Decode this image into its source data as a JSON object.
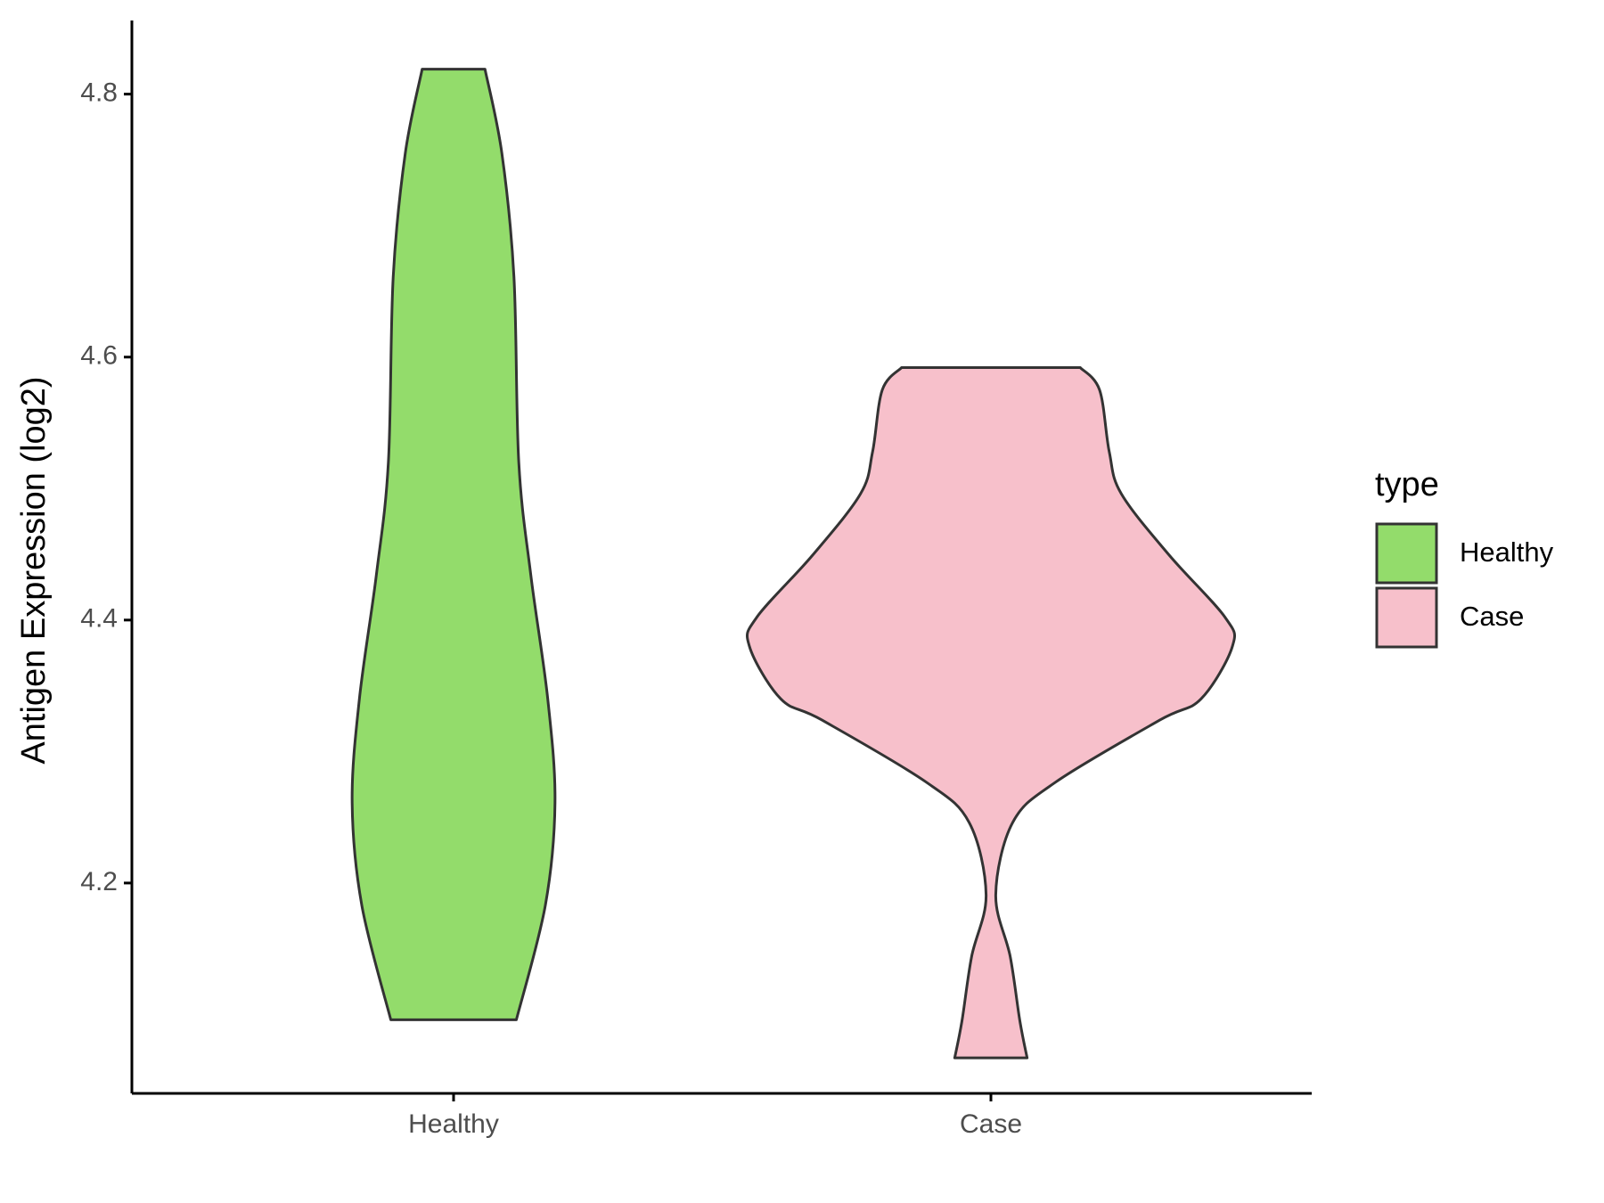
{
  "chart_data": {
    "type": "violin",
    "y_label": "Antigen Expression (log2)",
    "categories": [
      "Healthy",
      "Case"
    ],
    "legend_title": "type",
    "ylim": [
      4.04,
      4.856
    ],
    "yticks": [
      4.2,
      4.4,
      4.6,
      4.8
    ],
    "series": [
      {
        "name": "Healthy",
        "color": "#93dc6b",
        "y": [
          4.819,
          4.755,
          4.661,
          4.52,
          4.434,
          4.34,
          4.261,
          4.183,
          4.096
        ],
        "density": [
          0.13,
          0.2,
          0.25,
          0.27,
          0.32,
          0.39,
          0.42,
          0.38,
          0.26
        ]
      },
      {
        "name": "Case",
        "color": "#f7c0cb",
        "y": [
          4.592,
          4.575,
          4.528,
          4.496,
          4.449,
          4.402,
          4.38,
          4.34,
          4.324,
          4.277,
          4.246,
          4.191,
          4.144,
          4.095,
          4.067
        ],
        "density": [
          0.37,
          0.45,
          0.49,
          0.54,
          0.74,
          0.97,
          1,
          0.87,
          0.7,
          0.27,
          0.09,
          0.02,
          0.08,
          0.12,
          0.15
        ]
      }
    ]
  }
}
